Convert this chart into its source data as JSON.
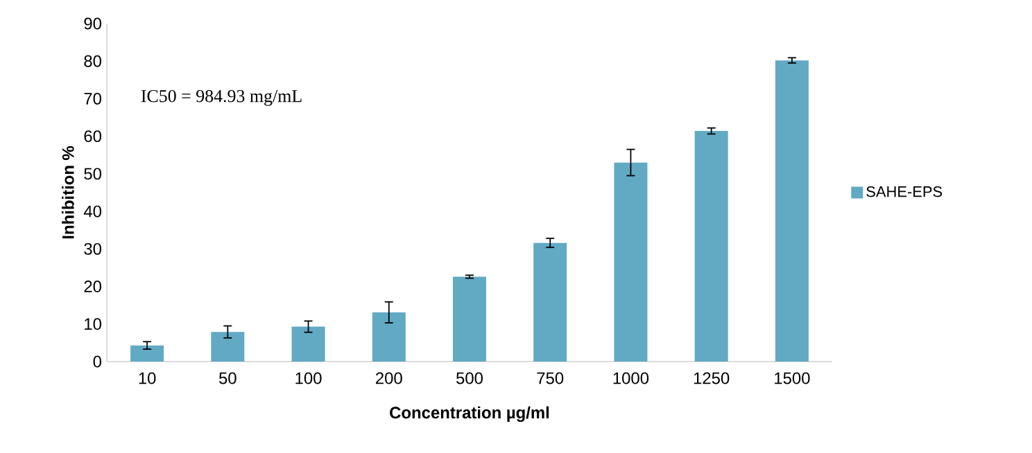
{
  "chart_data": {
    "type": "bar",
    "xlabel": "Concentration µg/ml",
    "ylabel": "Inhibition %",
    "categories": [
      "10",
      "50",
      "100",
      "200",
      "500",
      "750",
      "1000",
      "1250",
      "1500"
    ],
    "series": [
      {
        "name": "SAHE-EPS",
        "color": "#62a9c4",
        "values": [
          4.3,
          7.9,
          9.3,
          13.1,
          22.6,
          31.6,
          53.0,
          61.4,
          80.2
        ],
        "errors": [
          1.0,
          1.6,
          1.5,
          2.8,
          0.4,
          1.2,
          3.5,
          0.8,
          0.7
        ]
      }
    ],
    "ylim": [
      0,
      90
    ],
    "yticks": [
      0,
      10,
      20,
      30,
      40,
      50,
      60,
      70,
      80,
      90
    ],
    "annotations": [
      "IC50 = 984.93 mg/mL"
    ],
    "legend": "right",
    "grid": false
  }
}
